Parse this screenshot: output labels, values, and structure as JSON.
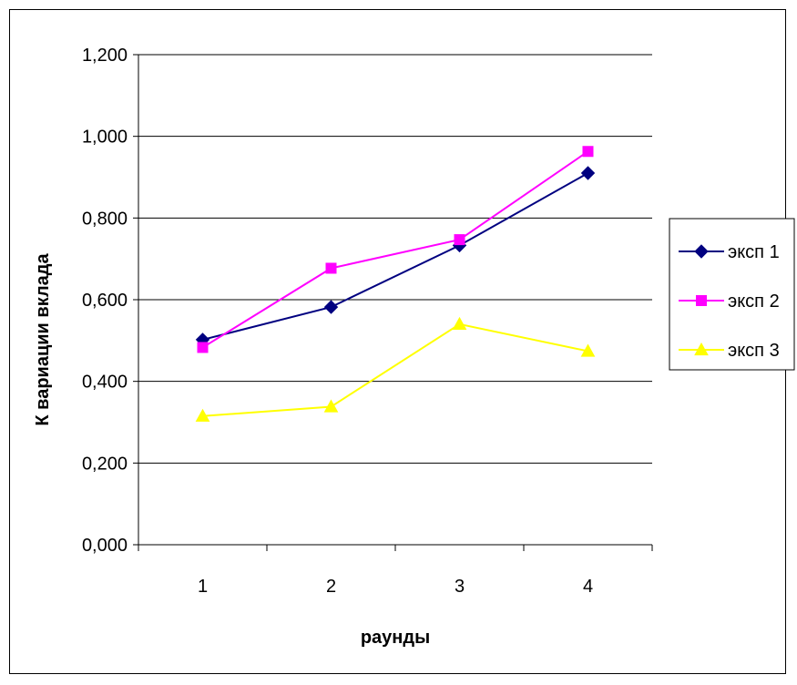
{
  "chart_data": {
    "type": "line",
    "categories": [
      "1",
      "2",
      "3",
      "4"
    ],
    "x": [
      1,
      2,
      3,
      4
    ],
    "xlabel": "раунды",
    "ylabel": "К вариации  вклада",
    "ylim": [
      0,
      1.2
    ],
    "yticks": [
      "0,000",
      "0,200",
      "0,400",
      "0,600",
      "0,800",
      "1,000",
      "1,200"
    ],
    "grid": "horizontal",
    "legend_position": "right",
    "series": [
      {
        "name": "эксп 1",
        "values": [
          0.502,
          0.582,
          0.733,
          0.91
        ],
        "color": "#000080",
        "marker": "diamond"
      },
      {
        "name": "эксп 2",
        "values": [
          0.483,
          0.677,
          0.747,
          0.963
        ],
        "color": "#FF00FF",
        "marker": "square"
      },
      {
        "name": "эксп 3",
        "values": [
          0.315,
          0.338,
          0.54,
          0.474
        ],
        "color": "#FFFF00",
        "marker": "triangle"
      }
    ]
  }
}
